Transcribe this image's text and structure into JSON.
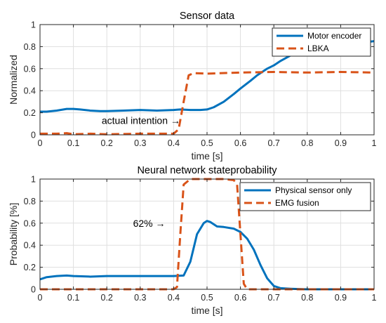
{
  "colors": {
    "series1": "#0072BD",
    "series2": "#D95319"
  },
  "chart_data": [
    {
      "type": "line",
      "title": "Sensor data",
      "xlabel": "time [s]",
      "ylabel": "Normalized",
      "xlim": [
        0,
        1
      ],
      "ylim": [
        0,
        1
      ],
      "xticks": [
        "0",
        "0.1",
        "0.2",
        "0.3",
        "0.4",
        "0.5",
        "0.6",
        "0.7",
        "0.8",
        "0.9",
        "1"
      ],
      "yticks": [
        "0",
        "0.2",
        "0.4",
        "0.6",
        "0.8",
        "1"
      ],
      "grid": true,
      "legend": "top-right",
      "annotation": {
        "text": "actual intention →",
        "x": 0.42,
        "y": 0.13
      },
      "series": [
        {
          "name": "Motor encoder",
          "style": "solid",
          "x": [
            0,
            0.02,
            0.05,
            0.08,
            0.1,
            0.12,
            0.15,
            0.18,
            0.2,
            0.25,
            0.3,
            0.35,
            0.4,
            0.42,
            0.45,
            0.48,
            0.5,
            0.52,
            0.55,
            0.58,
            0.6,
            0.63,
            0.65,
            0.68,
            0.7,
            0.72,
            0.75,
            0.78,
            0.8,
            0.85,
            0.9,
            0.95,
            1.0
          ],
          "y": [
            0.21,
            0.21,
            0.22,
            0.235,
            0.235,
            0.23,
            0.22,
            0.215,
            0.215,
            0.22,
            0.225,
            0.22,
            0.225,
            0.23,
            0.225,
            0.225,
            0.23,
            0.25,
            0.3,
            0.37,
            0.42,
            0.49,
            0.54,
            0.6,
            0.63,
            0.67,
            0.72,
            0.76,
            0.79,
            0.81,
            0.82,
            0.83,
            0.85
          ]
        },
        {
          "name": "LBKA",
          "style": "dashed",
          "x": [
            0,
            0.05,
            0.08,
            0.1,
            0.15,
            0.2,
            0.3,
            0.4,
            0.415,
            0.43,
            0.445,
            0.46,
            0.5,
            0.6,
            0.7,
            0.8,
            0.9,
            1.0
          ],
          "y": [
            0.01,
            0.01,
            0.015,
            0.005,
            0.01,
            0.005,
            0.01,
            0.01,
            0.05,
            0.3,
            0.54,
            0.56,
            0.555,
            0.565,
            0.57,
            0.565,
            0.57,
            0.565
          ]
        }
      ]
    },
    {
      "type": "line",
      "title": "Neural network stateprobability",
      "xlabel": "time [s]",
      "ylabel": "Probability [%]",
      "xlim": [
        0,
        1
      ],
      "ylim": [
        0,
        1
      ],
      "xticks": [
        "0",
        "0.1",
        "0.2",
        "0.3",
        "0.4",
        "0.5",
        "0.6",
        "0.7",
        "0.8",
        "0.9",
        "1"
      ],
      "yticks": [
        "0",
        "0.2",
        "0.4",
        "0.6",
        "0.8",
        "1"
      ],
      "grid": true,
      "legend": "top-right",
      "annotation": {
        "text": "62% →",
        "x": 0.375,
        "y": 0.6
      },
      "series": [
        {
          "name": "Physical sensor only",
          "style": "solid",
          "x": [
            0,
            0.02,
            0.05,
            0.08,
            0.1,
            0.15,
            0.2,
            0.3,
            0.4,
            0.43,
            0.45,
            0.47,
            0.49,
            0.5,
            0.51,
            0.53,
            0.55,
            0.58,
            0.6,
            0.62,
            0.64,
            0.66,
            0.68,
            0.7,
            0.72,
            0.75,
            0.8,
            0.9,
            1.0
          ],
          "y": [
            0.09,
            0.11,
            0.12,
            0.125,
            0.12,
            0.115,
            0.12,
            0.12,
            0.12,
            0.125,
            0.25,
            0.5,
            0.6,
            0.62,
            0.61,
            0.57,
            0.565,
            0.55,
            0.52,
            0.46,
            0.36,
            0.22,
            0.1,
            0.03,
            0.01,
            0.005,
            0.0,
            0.0,
            0.0
          ]
        },
        {
          "name": "EMG fusion",
          "style": "dashed",
          "x": [
            0,
            0.4,
            0.41,
            0.42,
            0.43,
            0.45,
            0.5,
            0.55,
            0.58,
            0.59,
            0.6,
            0.61,
            0.62,
            0.7,
            1.0
          ],
          "y": [
            0,
            0,
            0.02,
            0.5,
            0.95,
            1.0,
            1.0,
            1.0,
            0.99,
            0.95,
            0.5,
            0.05,
            0.0,
            0.0,
            0.0
          ]
        }
      ]
    }
  ]
}
